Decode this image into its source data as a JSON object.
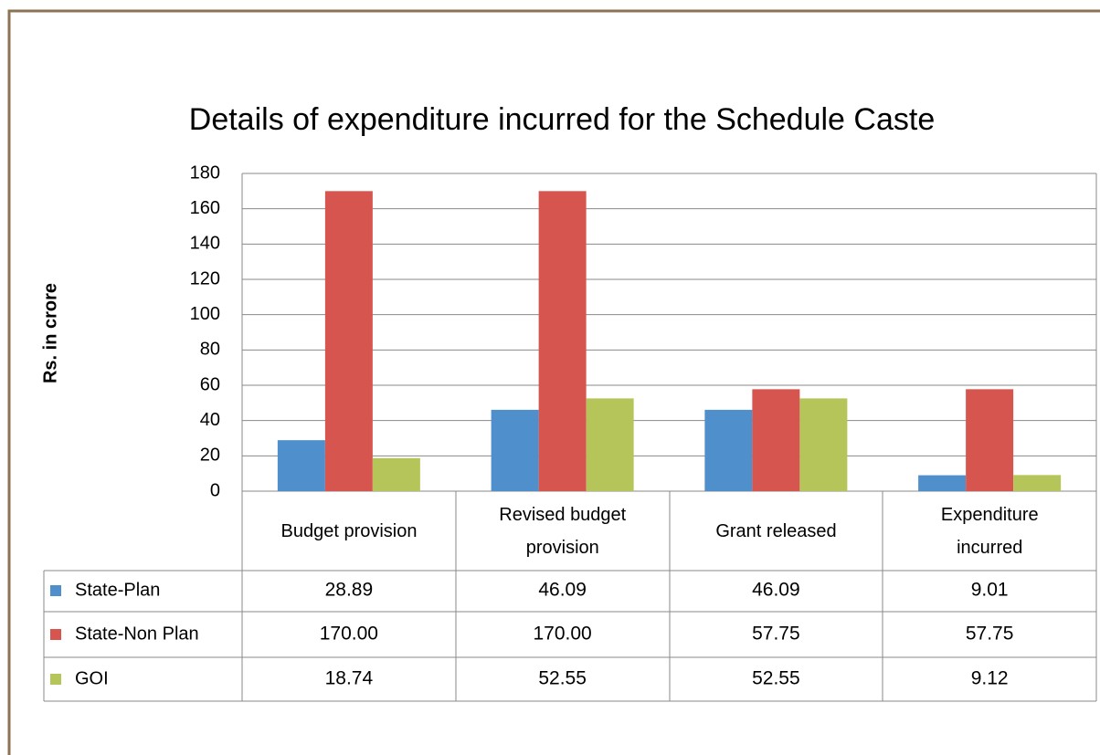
{
  "chart_data": {
    "type": "bar",
    "title": "Details of expenditure incurred for the Schedule Caste",
    "y_label": "Rs. in crore",
    "categories": [
      "Budget provision",
      "Revised budget provision",
      "Grant released",
      "Expenditure incurred"
    ],
    "series": [
      {
        "name": "State-Plan",
        "color": "#4f8fcc",
        "values": [
          28.89,
          46.09,
          46.09,
          9.01
        ]
      },
      {
        "name": "State-Non Plan",
        "color": "#d6564f",
        "values": [
          170,
          170,
          57.75,
          57.75
        ],
        "value_labels": [
          "170.00",
          "170.00",
          "57.75",
          "57.75"
        ]
      },
      {
        "name": "GOI",
        "color": "#b5c55a",
        "values": [
          18.74,
          52.55,
          52.55,
          9.12
        ]
      }
    ],
    "ylim": [
      0,
      180
    ],
    "yticks": [
      0,
      20,
      40,
      60,
      80,
      100,
      120,
      140,
      160,
      180
    ],
    "grid": true
  }
}
